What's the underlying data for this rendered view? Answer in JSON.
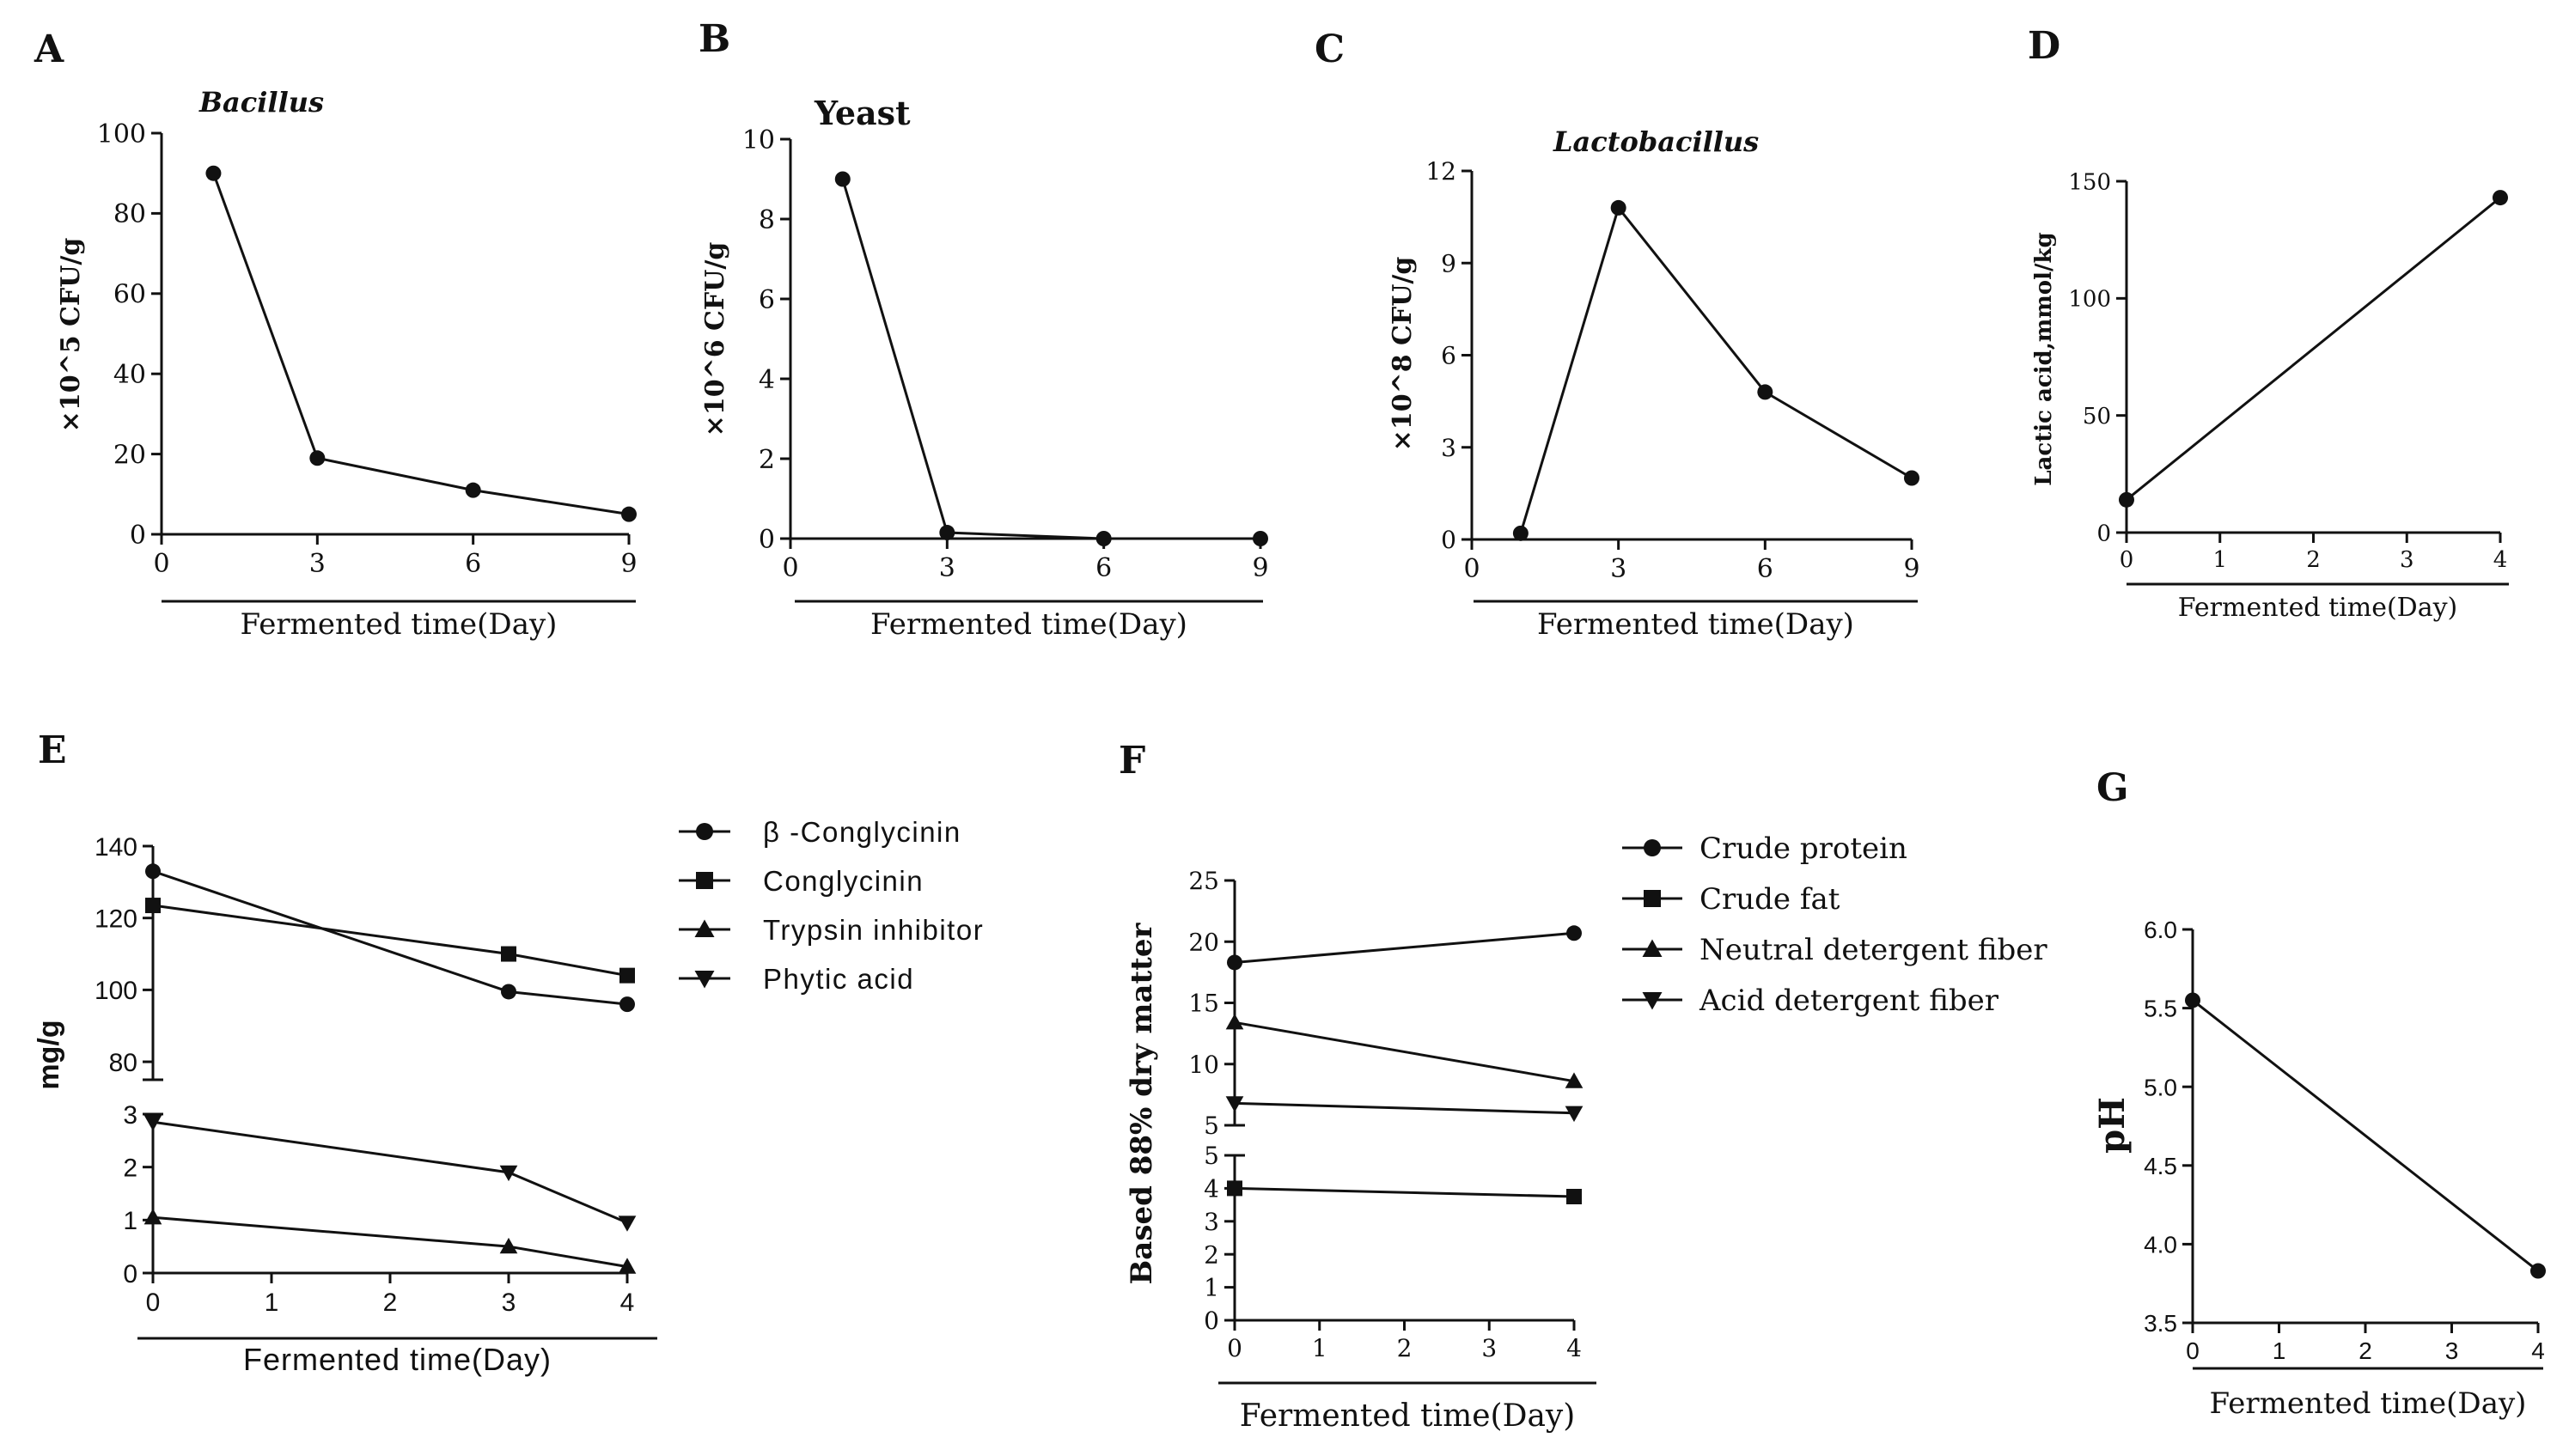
{
  "chart_data": [
    {
      "panel": "A",
      "type": "line",
      "title": "Bacillus",
      "ylabel": "×10^5 CFU/g",
      "xlabel": "Fermented time(Day)",
      "xlim": [
        0,
        9
      ],
      "ylim": [
        0,
        100
      ],
      "xticks": [
        "0",
        "3",
        "6",
        "9"
      ],
      "yticks": [
        "0",
        "20",
        "40",
        "60",
        "80",
        "100"
      ],
      "series": [
        {
          "name": "Bacillus",
          "marker": "circle",
          "x": [
            1,
            3,
            6,
            9
          ],
          "y": [
            90,
            19,
            11,
            5
          ]
        }
      ]
    },
    {
      "panel": "B",
      "type": "line",
      "title": "Yeast",
      "ylabel": "×10^6 CFU/g",
      "xlabel": "Fermented time(Day)",
      "xlim": [
        0,
        9
      ],
      "ylim": [
        0,
        10
      ],
      "xticks": [
        "0",
        "3",
        "6",
        "9"
      ],
      "yticks": [
        "0",
        "2",
        "4",
        "6",
        "8",
        "10"
      ],
      "series": [
        {
          "name": "Yeast",
          "marker": "circle",
          "x": [
            1,
            3,
            6,
            9
          ],
          "y": [
            9,
            0.15,
            0,
            0
          ]
        }
      ]
    },
    {
      "panel": "C",
      "type": "line",
      "title": "Lactobacillus",
      "ylabel": "×10^8 CFU/g",
      "xlabel": "Fermented time(Day)",
      "xlim": [
        0,
        9
      ],
      "ylim": [
        0,
        12
      ],
      "xticks": [
        "0",
        "3",
        "6",
        "9"
      ],
      "yticks": [
        "0",
        "3",
        "6",
        "9",
        "12"
      ],
      "series": [
        {
          "name": "Lactobacillus",
          "marker": "circle",
          "x": [
            1,
            3,
            6,
            9
          ],
          "y": [
            0.2,
            10.8,
            4.8,
            2.0
          ]
        }
      ]
    },
    {
      "panel": "D",
      "type": "line",
      "title": "",
      "ylabel": "Lactic acid,mmol/kg",
      "xlabel": "Fermented time(Day)",
      "xlim": [
        0,
        4
      ],
      "ylim": [
        0,
        150
      ],
      "xticks": [
        "0",
        "1",
        "2",
        "3",
        "4"
      ],
      "yticks": [
        "0",
        "50",
        "100",
        "150"
      ],
      "series": [
        {
          "name": "Lactic acid",
          "marker": "circle",
          "x": [
            0,
            4
          ],
          "y": [
            14,
            143
          ]
        }
      ]
    },
    {
      "panel": "E",
      "type": "line",
      "title": "",
      "ylabel": "mg/g",
      "xlabel": "Fermented time(Day)",
      "xlim": [
        0,
        4
      ],
      "ylim_upper": [
        75,
        140
      ],
      "ylim_lower": [
        0,
        3
      ],
      "xticks": [
        "0",
        "1",
        "2",
        "3",
        "4"
      ],
      "yticks_upper": [
        "80",
        "100",
        "120",
        "140"
      ],
      "yticks_lower": [
        "0",
        "1",
        "2",
        "3"
      ],
      "series": [
        {
          "name": "β -Conglycinin",
          "marker": "circle",
          "segment": "upper",
          "x": [
            0,
            3,
            4
          ],
          "y": [
            133,
            99.5,
            96
          ]
        },
        {
          "name": "Conglycinin",
          "marker": "square",
          "segment": "upper",
          "x": [
            0,
            3,
            4
          ],
          "y": [
            123.5,
            110,
            104
          ]
        },
        {
          "name": "Trypsin inhibitor",
          "marker": "triangle-up",
          "segment": "lower",
          "x": [
            0,
            3,
            4
          ],
          "y": [
            1.05,
            0.5,
            0.12
          ]
        },
        {
          "name": "Phytic acid",
          "marker": "triangle-down",
          "segment": "lower",
          "x": [
            0,
            3,
            4
          ],
          "y": [
            2.85,
            1.9,
            0.95
          ]
        }
      ]
    },
    {
      "panel": "F",
      "type": "line",
      "title": "",
      "ylabel": "Based 88% dry matter",
      "xlabel": "Fermented time(Day)",
      "xlim": [
        0,
        4
      ],
      "ylim_upper": [
        5,
        25
      ],
      "ylim_lower": [
        0,
        5
      ],
      "xticks": [
        "0",
        "1",
        "2",
        "3",
        "4"
      ],
      "yticks_upper": [
        "5",
        "10",
        "15",
        "20",
        "25"
      ],
      "yticks_lower": [
        "0",
        "1",
        "2",
        "3",
        "4",
        "5"
      ],
      "series": [
        {
          "name": "Crude protein",
          "marker": "circle",
          "segment": "upper",
          "x": [
            0,
            4
          ],
          "y": [
            18.3,
            20.7
          ]
        },
        {
          "name": "Crude fat",
          "marker": "square",
          "segment": "lower",
          "x": [
            0,
            4
          ],
          "y": [
            4.0,
            3.75
          ]
        },
        {
          "name": "Neutral detergent fiber",
          "marker": "triangle-up",
          "segment": "upper",
          "x": [
            0,
            4
          ],
          "y": [
            13.4,
            8.6
          ]
        },
        {
          "name": "Acid detergent fiber",
          "marker": "triangle-down",
          "segment": "upper",
          "x": [
            0,
            4
          ],
          "y": [
            6.8,
            6.0
          ]
        }
      ]
    },
    {
      "panel": "G",
      "type": "line",
      "title": "",
      "ylabel": "pH",
      "xlabel": "Fermented time(Day)",
      "xlim": [
        0,
        4
      ],
      "ylim": [
        3.5,
        6.0
      ],
      "xticks": [
        "0",
        "1",
        "2",
        "3",
        "4"
      ],
      "yticks": [
        "3.5",
        "4.0",
        "4.5",
        "5.0",
        "5.5",
        "6.0"
      ],
      "series": [
        {
          "name": "pH",
          "marker": "circle",
          "x": [
            0,
            4
          ],
          "y": [
            5.55,
            3.83
          ]
        }
      ]
    }
  ]
}
